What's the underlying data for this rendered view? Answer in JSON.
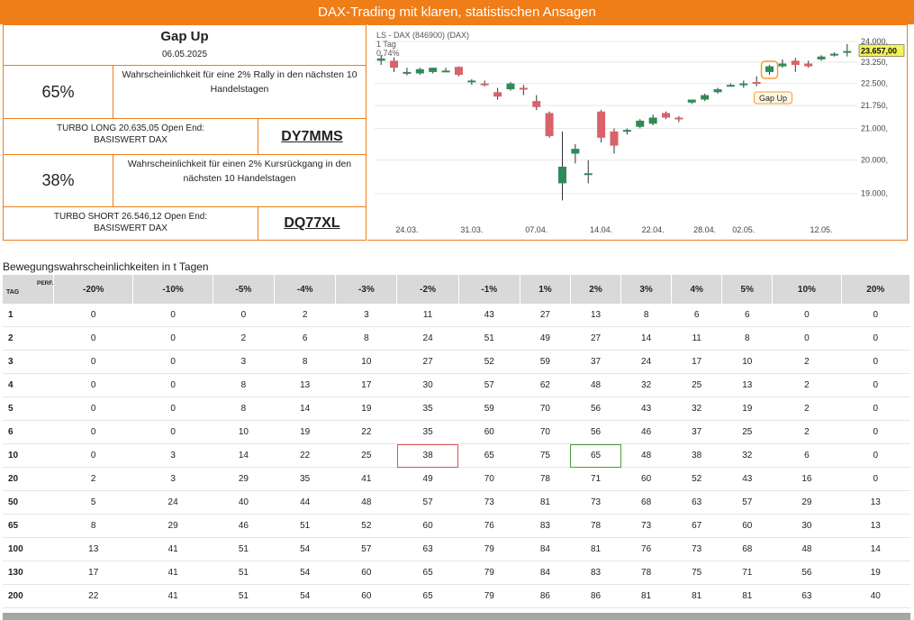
{
  "banner": "DAX-Trading mit klaren, statistischen Ansagen",
  "left": {
    "title": "Gap Up",
    "date": "06.05.2025",
    "long_pct": "65%",
    "long_desc": "Wahrscheinlichkeit für eine 2% Rally in den nächsten 10 Handelstagen",
    "long_turbo_line1": "TURBO LONG 20.635,05 Open End:",
    "long_turbo_line2": "BASISWERT DAX",
    "long_code": "DY7MMS",
    "short_pct": "38%",
    "short_desc": "Wahrscheinlichkeit für einen 2% Kursrückgang in den nächsten 10 Handelstagen",
    "short_turbo_line1": "TURBO SHORT 26.546,12 Open End:",
    "short_turbo_line2": "BASISWERT DAX",
    "short_code": "DQ77XL"
  },
  "chart_data": {
    "type": "candlestick",
    "title": "LS - DAX (846900) (DAX)",
    "period": "1 Tag",
    "change": "0,74%",
    "last_price_label": "23.657,00",
    "annotation": "Gap Up",
    "y_ticks": [
      19000,
      20000,
      21000,
      21750,
      22500,
      23250,
      24000
    ],
    "y_tick_labels": [
      "19.000,",
      "20.000,",
      "21.000,",
      "21.750,",
      "22.500,",
      "23.250,",
      "24.000,"
    ],
    "y_scale": "log",
    "x_tick_labels": [
      "24.03.",
      "31.03.",
      "07.04.",
      "14.04.",
      "22.04.",
      "28.04.",
      "02.05.",
      "12.05."
    ],
    "candles": [
      {
        "date": "20.03.",
        "o": 23300,
        "h": 23500,
        "l": 23150,
        "c": 23380
      },
      {
        "date": "21.03.",
        "o": 23300,
        "h": 23420,
        "l": 22900,
        "c": 23050
      },
      {
        "date": "24.03.",
        "o": 22900,
        "h": 23050,
        "l": 22780,
        "c": 22900
      },
      {
        "date": "25.03.",
        "o": 22850,
        "h": 23050,
        "l": 22800,
        "c": 23000
      },
      {
        "date": "26.03.",
        "o": 22900,
        "h": 23050,
        "l": 22850,
        "c": 23050
      },
      {
        "date": "27.03.",
        "o": 22950,
        "h": 23050,
        "l": 22900,
        "c": 22950
      },
      {
        "date": "28.03.",
        "o": 23080,
        "h": 23100,
        "l": 22750,
        "c": 22800
      },
      {
        "date": "31.03.",
        "o": 22550,
        "h": 22650,
        "l": 22450,
        "c": 22600
      },
      {
        "date": "01.04.",
        "o": 22500,
        "h": 22600,
        "l": 22400,
        "c": 22450
      },
      {
        "date": "02.04.",
        "o": 22200,
        "h": 22350,
        "l": 21950,
        "c": 22050
      },
      {
        "date": "03.04.",
        "o": 22300,
        "h": 22550,
        "l": 22250,
        "c": 22500
      },
      {
        "date": "04.04.",
        "o": 22350,
        "h": 22450,
        "l": 22100,
        "c": 22300
      },
      {
        "date": "07.04.",
        "o": 21900,
        "h": 22100,
        "l": 21600,
        "c": 21700
      },
      {
        "date": "08.04.",
        "o": 21500,
        "h": 21550,
        "l": 20700,
        "c": 20750
      },
      {
        "date": "09.04.",
        "o": 19300,
        "h": 20900,
        "l": 18800,
        "c": 19800
      },
      {
        "date": "10.04.",
        "o": 20200,
        "h": 20500,
        "l": 19900,
        "c": 20350
      },
      {
        "date": "11.04.",
        "o": 19550,
        "h": 20000,
        "l": 19300,
        "c": 19600
      },
      {
        "date": "14.04.",
        "o": 21550,
        "h": 21600,
        "l": 20550,
        "c": 20700
      },
      {
        "date": "15.04.",
        "o": 20900,
        "h": 21000,
        "l": 20200,
        "c": 20450
      },
      {
        "date": "16.04.",
        "o": 20900,
        "h": 21000,
        "l": 20800,
        "c": 20950
      },
      {
        "date": "17.04.",
        "o": 21050,
        "h": 21300,
        "l": 21000,
        "c": 21250
      },
      {
        "date": "22.04.",
        "o": 21150,
        "h": 21450,
        "l": 21100,
        "c": 21350
      },
      {
        "date": "23.04.",
        "o": 21500,
        "h": 21550,
        "l": 21300,
        "c": 21350
      },
      {
        "date": "24.04.",
        "o": 21350,
        "h": 21400,
        "l": 21200,
        "c": 21300
      },
      {
        "date": "25.04.",
        "o": 21850,
        "h": 21950,
        "l": 21800,
        "c": 21950
      },
      {
        "date": "28.04.",
        "o": 21950,
        "h": 22150,
        "l": 21900,
        "c": 22100
      },
      {
        "date": "29.04.",
        "o": 22200,
        "h": 22350,
        "l": 22150,
        "c": 22300
      },
      {
        "date": "30.04.",
        "o": 22450,
        "h": 22500,
        "l": 22400,
        "c": 22450
      },
      {
        "date": "02.05.",
        "o": 22450,
        "h": 22600,
        "l": 22350,
        "c": 22500
      },
      {
        "date": "05.05.",
        "o": 22550,
        "h": 22750,
        "l": 22400,
        "c": 22500
      },
      {
        "date": "06.05.",
        "o": 22900,
        "h": 23150,
        "l": 22800,
        "c": 23100
      },
      {
        "date": "07.05.",
        "o": 23100,
        "h": 23350,
        "l": 23050,
        "c": 23200
      },
      {
        "date": "08.05.",
        "o": 23300,
        "h": 23400,
        "l": 22900,
        "c": 23150
      },
      {
        "date": "09.05.",
        "o": 23200,
        "h": 23300,
        "l": 23050,
        "c": 23100
      },
      {
        "date": "12.05.",
        "o": 23350,
        "h": 23500,
        "l": 23300,
        "c": 23450
      },
      {
        "date": "13.05.",
        "o": 23500,
        "h": 23600,
        "l": 23450,
        "c": 23550
      },
      {
        "date": "14.05.",
        "o": 23600,
        "h": 23900,
        "l": 23450,
        "c": 23650
      }
    ],
    "x_tick_indices": [
      2,
      7,
      12,
      17,
      21,
      25,
      28,
      34
    ]
  },
  "table_title": "Bewegungswahrscheinlichkeiten in t Tagen",
  "table": {
    "perf_label": "PERF.",
    "tag_label": "TAG",
    "headers": [
      "-20%",
      "-10%",
      "-5%",
      "-4%",
      "-3%",
      "-2%",
      "-1%",
      "1%",
      "2%",
      "3%",
      "4%",
      "5%",
      "10%",
      "20%"
    ],
    "rows": [
      {
        "tag": "1",
        "values": [
          "0",
          "0",
          "0",
          "2",
          "3",
          "11",
          "43",
          "27",
          "13",
          "8",
          "6",
          "6",
          "0",
          "0"
        ]
      },
      {
        "tag": "2",
        "values": [
          "0",
          "0",
          "2",
          "6",
          "8",
          "24",
          "51",
          "49",
          "27",
          "14",
          "11",
          "8",
          "0",
          "0"
        ]
      },
      {
        "tag": "3",
        "values": [
          "0",
          "0",
          "3",
          "8",
          "10",
          "27",
          "52",
          "59",
          "37",
          "24",
          "17",
          "10",
          "2",
          "0"
        ]
      },
      {
        "tag": "4",
        "values": [
          "0",
          "0",
          "8",
          "13",
          "17",
          "30",
          "57",
          "62",
          "48",
          "32",
          "25",
          "13",
          "2",
          "0"
        ]
      },
      {
        "tag": "5",
        "values": [
          "0",
          "0",
          "8",
          "14",
          "19",
          "35",
          "59",
          "70",
          "56",
          "43",
          "32",
          "19",
          "2",
          "0"
        ]
      },
      {
        "tag": "6",
        "values": [
          "0",
          "0",
          "10",
          "19",
          "22",
          "35",
          "60",
          "70",
          "56",
          "46",
          "37",
          "25",
          "2",
          "0"
        ]
      },
      {
        "tag": "10",
        "values": [
          "0",
          "3",
          "14",
          "22",
          "25",
          "38",
          "65",
          "75",
          "65",
          "48",
          "38",
          "32",
          "6",
          "0"
        ]
      },
      {
        "tag": "20",
        "values": [
          "2",
          "3",
          "29",
          "35",
          "41",
          "49",
          "70",
          "78",
          "71",
          "60",
          "52",
          "43",
          "16",
          "0"
        ]
      },
      {
        "tag": "50",
        "values": [
          "5",
          "24",
          "40",
          "44",
          "48",
          "57",
          "73",
          "81",
          "73",
          "68",
          "63",
          "57",
          "29",
          "13"
        ]
      },
      {
        "tag": "65",
        "values": [
          "8",
          "29",
          "46",
          "51",
          "52",
          "60",
          "76",
          "83",
          "78",
          "73",
          "67",
          "60",
          "30",
          "13"
        ]
      },
      {
        "tag": "100",
        "values": [
          "13",
          "41",
          "51",
          "54",
          "57",
          "63",
          "79",
          "84",
          "81",
          "76",
          "73",
          "68",
          "48",
          "14"
        ]
      },
      {
        "tag": "130",
        "values": [
          "17",
          "41",
          "51",
          "54",
          "60",
          "65",
          "79",
          "84",
          "83",
          "78",
          "75",
          "71",
          "56",
          "19"
        ]
      },
      {
        "tag": "200",
        "values": [
          "22",
          "41",
          "51",
          "54",
          "60",
          "65",
          "79",
          "86",
          "86",
          "81",
          "81",
          "81",
          "63",
          "40"
        ]
      }
    ],
    "highlight_red": {
      "row": 6,
      "col": 5
    },
    "highlight_green": {
      "row": 6,
      "col": 8
    }
  },
  "colors": {
    "accent": "#ef7d18",
    "up": "#2e8b57",
    "down": "#d9626b",
    "header_bg": "#d9d9d9"
  }
}
